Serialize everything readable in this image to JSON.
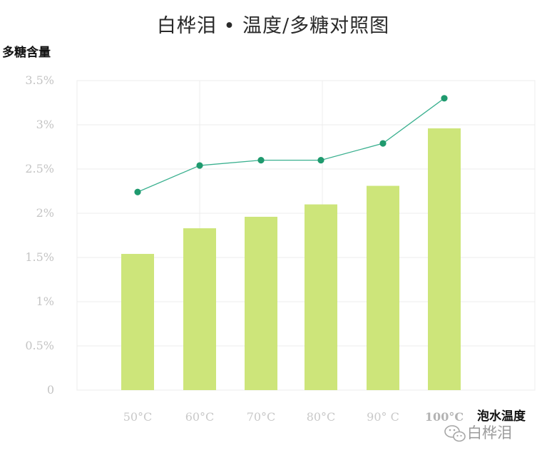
{
  "chart_data": {
    "type": "bar",
    "title": "白桦泪 • 温度/多糖对照图",
    "ylabel": "多糖含量",
    "xlabel": "泡水温度",
    "categories": [
      "50°C",
      "60°C",
      "70°C",
      "80°C",
      "90° C",
      "100°C"
    ],
    "series": [
      {
        "type": "bar",
        "values": [
          1.54,
          1.83,
          1.96,
          2.1,
          2.31,
          2.96
        ]
      },
      {
        "type": "line",
        "values": [
          2.24,
          2.54,
          2.6,
          2.6,
          2.79,
          3.3
        ]
      }
    ],
    "yticks": [
      "0",
      "0.5%",
      "1%",
      "1.5%",
      "2%",
      "2.5%",
      "3%",
      "3.5%"
    ],
    "ylim": [
      0,
      3.5
    ],
    "grid": true,
    "colors": {
      "bar": "#cde57a",
      "line": "#3ab08f",
      "marker": "#1f9a6e",
      "grid": "#ececec"
    }
  },
  "watermark": {
    "text": "白桦泪",
    "icon": "wechat-icon"
  }
}
